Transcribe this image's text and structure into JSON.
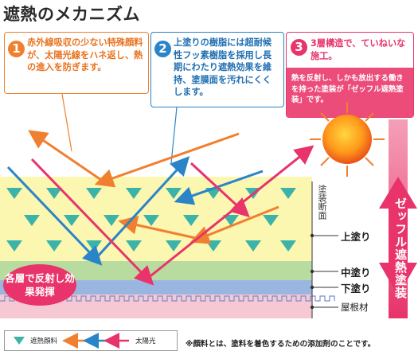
{
  "title": "遮熱のメカニズム",
  "callouts": [
    {
      "number": "1",
      "text": "赤外線吸収の少ない特殊顔料が、太陽光線をハネ返し、熱の進入を防ぎます。",
      "color": "#f08030"
    },
    {
      "number": "2",
      "text": "上塗りの樹脂には超耐候性フッ素樹脂を採用し長期にわたり遮熱効果を維持、塗膜面を汚れにくくします。",
      "color": "#2a84c8"
    },
    {
      "number": "3",
      "heading": "3層構造で、ていねいな施工。",
      "body": "熱を反射し、しかも放出する働きを持った塗装が「ゼッフル遮熱塗装」です。",
      "color": "#e8336b"
    }
  ],
  "layers": {
    "paint_film": "塗装断面",
    "top_coat": "上塗り",
    "middle_coat": "中塗り",
    "under_coat": "下塗り",
    "roof_material": "屋根材"
  },
  "bubble": "各層で反射し効果発揮",
  "sidebar": "ゼッフル遮熱塗装",
  "legend": {
    "pigment": "遮熱顔料",
    "sunlight": "太陽光"
  },
  "footnote": "※顔料とは、塗料を着色するための添加剤のことです。",
  "colors": {
    "orange": "#f08030",
    "blue": "#2a84c8",
    "pink": "#e8336b",
    "teal": "#3bb3a8",
    "top_layer": "#fbf6b0",
    "middle_layer": "#b8dca0",
    "under_layer": "#9ab6e0",
    "roof": "#f6c8d4"
  }
}
